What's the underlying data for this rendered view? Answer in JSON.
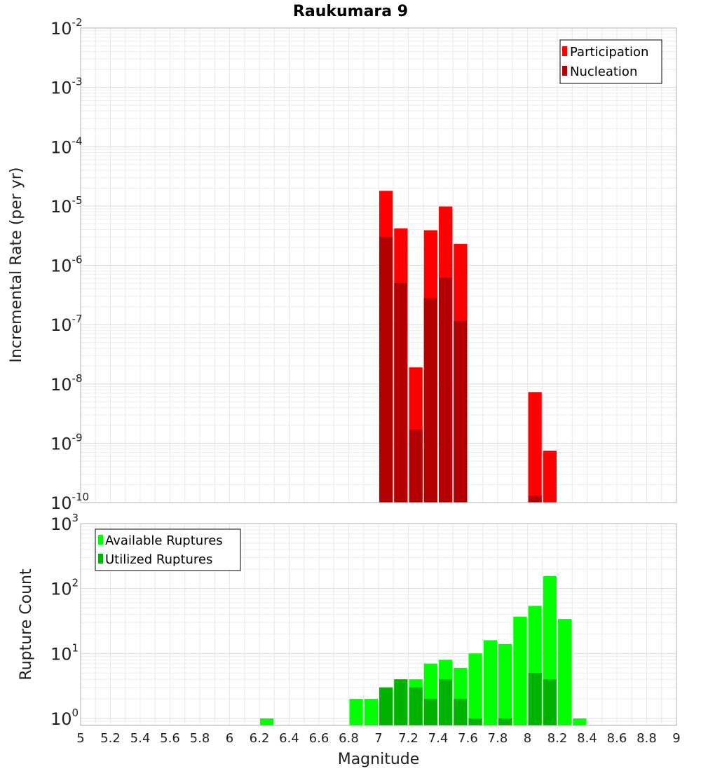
{
  "title": "Raukumara 9",
  "chart_data": [
    {
      "type": "bar",
      "scale": "log",
      "ylabel": "Incremental Rate (per yr)",
      "ylim": [
        1e-10,
        0.01
      ],
      "y_ticks": [
        {
          "base": "10",
          "exp": "-2",
          "value": 0.01
        },
        {
          "base": "10",
          "exp": "-3",
          "value": 0.001
        },
        {
          "base": "10",
          "exp": "-4",
          "value": 0.0001
        },
        {
          "base": "10",
          "exp": "-5",
          "value": 1e-05
        },
        {
          "base": "10",
          "exp": "-6",
          "value": 1e-06
        },
        {
          "base": "10",
          "exp": "-7",
          "value": 1e-07
        },
        {
          "base": "10",
          "exp": "-8",
          "value": 1e-08
        },
        {
          "base": "10",
          "exp": "-9",
          "value": 1e-09
        },
        {
          "base": "10",
          "exp": "-10",
          "value": 1e-10
        }
      ],
      "grid": true,
      "legend_position": "top-right",
      "bar_width": 0.1,
      "series": [
        {
          "name": "Participation",
          "color": "#ff0000",
          "x": [
            7.05,
            7.15,
            7.25,
            7.35,
            7.45,
            7.55,
            8.05,
            8.15
          ],
          "values": [
            1.8e-05,
            4.2e-06,
            1.9e-08,
            3.9e-06,
            9.8e-06,
            2.3e-06,
            7.3e-09,
            7.5e-10
          ]
        },
        {
          "name": "Nucleation",
          "color": "#b30000",
          "x": [
            7.05,
            7.15,
            7.25,
            7.35,
            7.45,
            7.55,
            8.05
          ],
          "values": [
            3e-06,
            5e-07,
            1.7e-09,
            2.8e-07,
            6.2e-07,
            1.15e-07,
            1.3e-10
          ]
        }
      ]
    },
    {
      "type": "bar",
      "scale": "log",
      "xlabel": "Magnitude",
      "ylabel": "Rupture Count",
      "ylim": [
        0.78,
        1000
      ],
      "xlim": [
        5,
        9
      ],
      "x_ticks": [
        "5",
        "5.2",
        "5.4",
        "5.6",
        "5.8",
        "6",
        "6.2",
        "6.4",
        "6.6",
        "6.8",
        "7",
        "7.2",
        "7.4",
        "7.6",
        "7.8",
        "8",
        "8.2",
        "8.4",
        "8.6",
        "8.8",
        "9"
      ],
      "y_ticks": [
        {
          "base": "10",
          "exp": "3",
          "value": 1000
        },
        {
          "base": "10",
          "exp": "2",
          "value": 100
        },
        {
          "base": "10",
          "exp": "1",
          "value": 10
        },
        {
          "base": "10",
          "exp": "0",
          "value": 1
        }
      ],
      "grid": true,
      "legend_position": "top-left",
      "bar_width": 0.1,
      "series": [
        {
          "name": "Available Ruptures",
          "color": "#00ff00",
          "x": [
            6.25,
            6.85,
            6.95,
            7.05,
            7.15,
            7.25,
            7.35,
            7.45,
            7.55,
            7.65,
            7.75,
            7.85,
            7.95,
            8.05,
            8.15,
            8.25,
            8.35
          ],
          "values": [
            1,
            2,
            2,
            3,
            4,
            4,
            7,
            8,
            6,
            10,
            16,
            14,
            37,
            54,
            155,
            34,
            1
          ]
        },
        {
          "name": "Utilized Ruptures",
          "color": "#00b300",
          "x": [
            7.05,
            7.15,
            7.25,
            7.35,
            7.45,
            7.55,
            7.65,
            7.85,
            8.05,
            8.15
          ],
          "values": [
            3,
            4,
            3,
            2,
            4,
            2,
            1,
            1,
            5,
            4
          ]
        }
      ]
    }
  ]
}
